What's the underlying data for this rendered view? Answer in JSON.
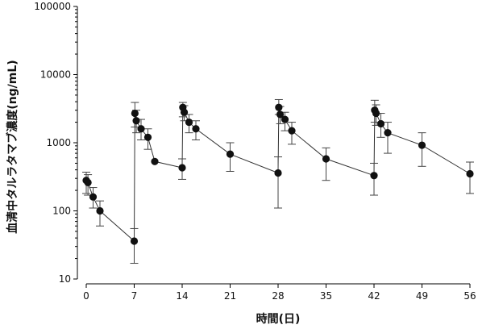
{
  "chart_data": {
    "type": "line",
    "xlabel": "時間(日)",
    "ylabel": "血清中タルラタマブ濃度(ng/mL)",
    "xlim": [
      0,
      56
    ],
    "ylim": [
      10,
      100000
    ],
    "yscale": "log",
    "x_ticks": [
      0,
      7,
      14,
      21,
      28,
      35,
      42,
      49,
      56
    ],
    "y_ticks": [
      10,
      100,
      1000,
      10000,
      100000
    ],
    "grid": false,
    "series": [
      {
        "x": [
          0,
          0.25,
          1,
          2,
          7,
          7.1,
          7.3,
          8,
          9,
          10,
          14,
          14.1,
          14.3,
          15,
          16,
          21,
          28,
          28.1,
          28.3,
          29,
          30,
          35,
          42,
          42.1,
          42.3,
          43,
          44,
          49,
          56
        ],
        "y": [
          280,
          260,
          160,
          100,
          36,
          2700,
          2100,
          1600,
          1200,
          530,
          430,
          3300,
          2800,
          2000,
          1600,
          680,
          360,
          3300,
          2600,
          2200,
          1500,
          580,
          330,
          3000,
          2700,
          1900,
          1400,
          920,
          350
        ],
        "y_low": [
          180,
          170,
          110,
          60,
          17,
          1700,
          1400,
          1100,
          800,
          530,
          290,
          2400,
          2100,
          1400,
          1100,
          380,
          110,
          2600,
          1900,
          1500,
          950,
          280,
          170,
          2000,
          1800,
          1200,
          700,
          450,
          180
        ],
        "y_high": [
          370,
          340,
          220,
          140,
          55,
          3900,
          3000,
          2200,
          1600,
          530,
          580,
          3900,
          3500,
          2600,
          2100,
          1000,
          620,
          4300,
          3400,
          2800,
          2000,
          840,
          500,
          4200,
          3600,
          2700,
          2000,
          1400,
          520
        ]
      }
    ]
  }
}
